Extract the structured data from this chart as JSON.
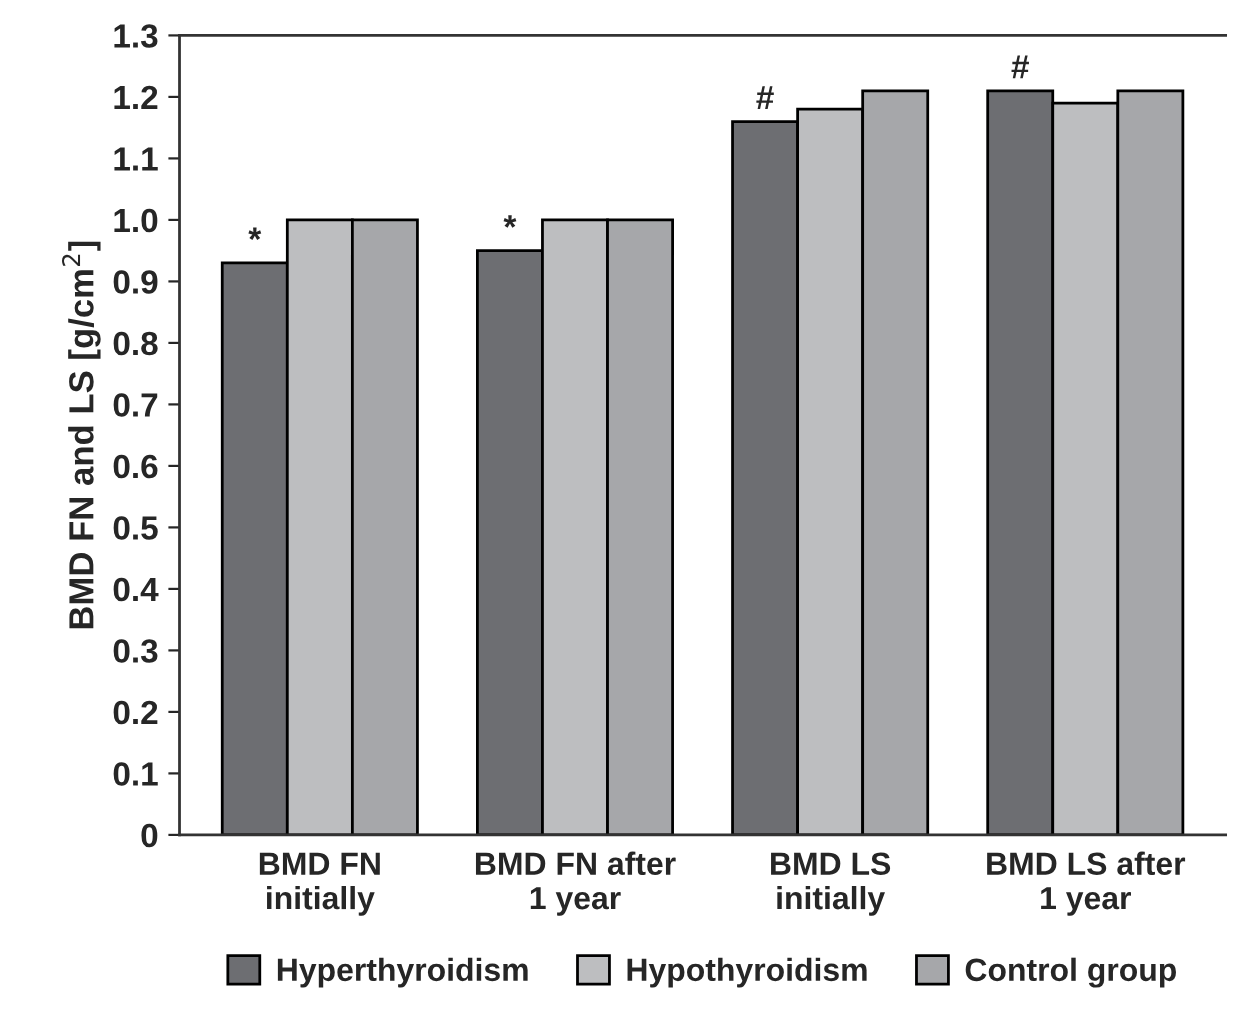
{
  "chart_data": {
    "type": "bar",
    "ylabel": "BMD FN and LS [g/cm$^{2}$]",
    "categories": [
      "BMD FN\ninitially",
      "BMD FN after\n1 year",
      "BMD LS\ninitially",
      "BMD LS after\n1 year"
    ],
    "series": [
      {
        "name": "Hyperthyroidism",
        "color": "#6d6e72",
        "values": [
          0.93,
          0.95,
          1.16,
          1.21
        ]
      },
      {
        "name": "Hypothyroidism",
        "color": "#bdbec0",
        "values": [
          1.0,
          1.0,
          1.18,
          1.19
        ]
      },
      {
        "name": "Control group",
        "color": "#a6a7aa",
        "values": [
          1.0,
          1.0,
          1.21,
          1.21
        ]
      }
    ],
    "ylim": [
      0,
      1.3
    ],
    "yticks": [
      0,
      0.1,
      0.2,
      0.3,
      0.4,
      0.5,
      0.6,
      0.7,
      0.8,
      0.9,
      {
        "value": 1,
        "label": "1.0"
      },
      1.1,
      1.2,
      1.3
    ],
    "annotations": [
      "*",
      "*",
      "#",
      "#"
    ],
    "grid": false,
    "legend": "bottom"
  }
}
